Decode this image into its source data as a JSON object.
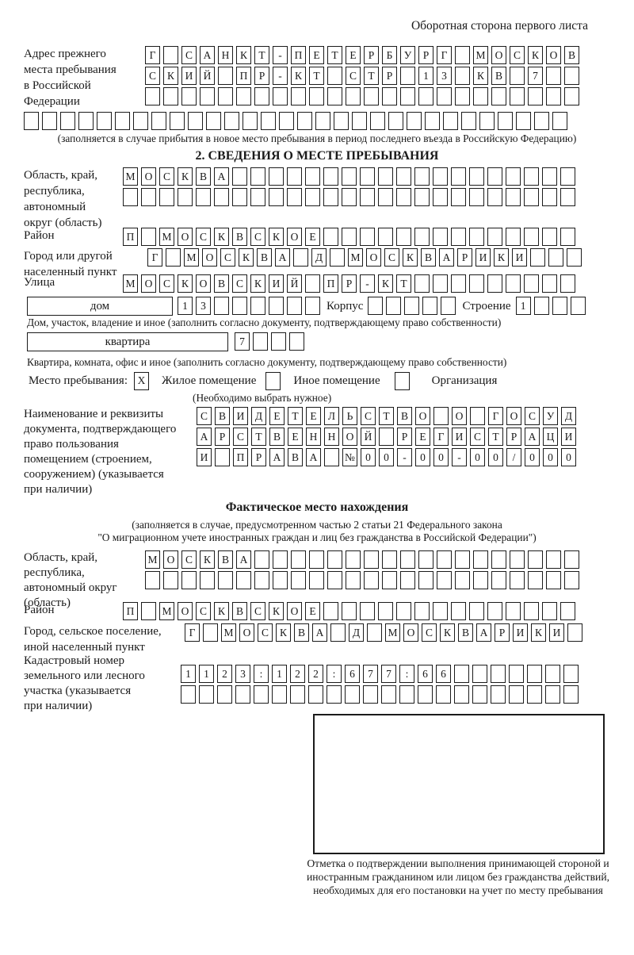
{
  "ink_color": "#1a1a1a",
  "page_header": "Оборотная сторона первого листа",
  "prev_address": {
    "label": "Адрес прежнего\nместа пребывания\nв Российской\nФедерации",
    "row1": "Г САНКТ-ПЕТЕРБУРГ МОСКОВ",
    "row2": "СКИЙ ПР-КТ СТР 13 КВ 7",
    "row3": "",
    "row4": "",
    "note": "(заполняется в случае прибытия в новое место пребывания в период последнего въезда в Российскую Федерацию)"
  },
  "section2": {
    "title": "2. СВЕДЕНИЯ О МЕСТЕ ПРЕБЫВАНИЯ",
    "oblast": {
      "label": "Область, край,\nреспублика,\nавтономный\nокруг (область)",
      "row1": "МОСКВА",
      "row2": ""
    },
    "raion": {
      "label": "Район",
      "row": "П МОСКВСКОЕ"
    },
    "gorod": {
      "label": "Город или другой\nнаселенный пункт",
      "row": "Г МОСКВА Д МОСКВАРИКИ"
    },
    "ulitsa": {
      "label": "Улица",
      "row": "МОСКОВСКИЙ ПР-КТ"
    },
    "dom": {
      "box_label": "дом",
      "cells": "13",
      "korpus_label": "Корпус",
      "korpus_cells": "",
      "stroenie_label": "Строение",
      "stroenie_cells": "1",
      "note": "Дом, участок, владение и иное (заполнить согласно документу, подтверждающему право собственности)"
    },
    "kvartira": {
      "box_label": "квартира",
      "cells": "7",
      "note": "Квартира, комната, офис и иное (заполнить согласно документу, подтверждающему право собственности)"
    },
    "mesto": {
      "label": "Место пребывания:",
      "zhiloe_mark": "X",
      "zhiloe_label": "Жилое помещение",
      "inoe_mark": "",
      "inoe_label": "Иное помещение",
      "org_mark": "",
      "org_label": "Организация",
      "note": "(Необходимо выбрать нужное)"
    },
    "document": {
      "label": "Наименование и реквизиты\nдокумента, подтверждающего\nправо пользования\nпомещением (строением,\nсооружением) (указывается\nпри наличии)",
      "row1": "СВИДЕТЕЛЬСТВО О ГОСУД",
      "row2": "АРСТВЕННОЙ РЕГИСТРАЦИ",
      "row3": "И ПРАВА №00-00-00/000"
    }
  },
  "fact": {
    "title": "Фактическое место нахождения",
    "note1": "(заполняется в случае, предусмотренном частью 2 статьи 21 Федерального закона",
    "note2": "\"О миграционном учете иностранных граждан и лиц без гражданства в Российской Федерации\")",
    "oblast": {
      "label": "Область, край,\nреспублика,\nавтономный округ\n(область)",
      "row1": "МОСКВА",
      "row2": ""
    },
    "raion": {
      "label": "Район",
      "row": "П МОСКВСКОЕ"
    },
    "gorod": {
      "label": "Город, сельское поселение,\nиной населенный пункт",
      "row": "Г МОСКВА Д МОСКВАРИКИ"
    },
    "kadastr": {
      "label": "Кадастровый номер\nземельного или лесного\nучастка (указывается\nпри наличии)",
      "row1": "1123:122:677:66",
      "row2": ""
    },
    "stamp_caption": "Отметка о подтверждении выполнения принимающей стороной и иностранным гражданином или лицом без гражданства действий, необходимых для его постановки на учет по месту пребывания"
  }
}
